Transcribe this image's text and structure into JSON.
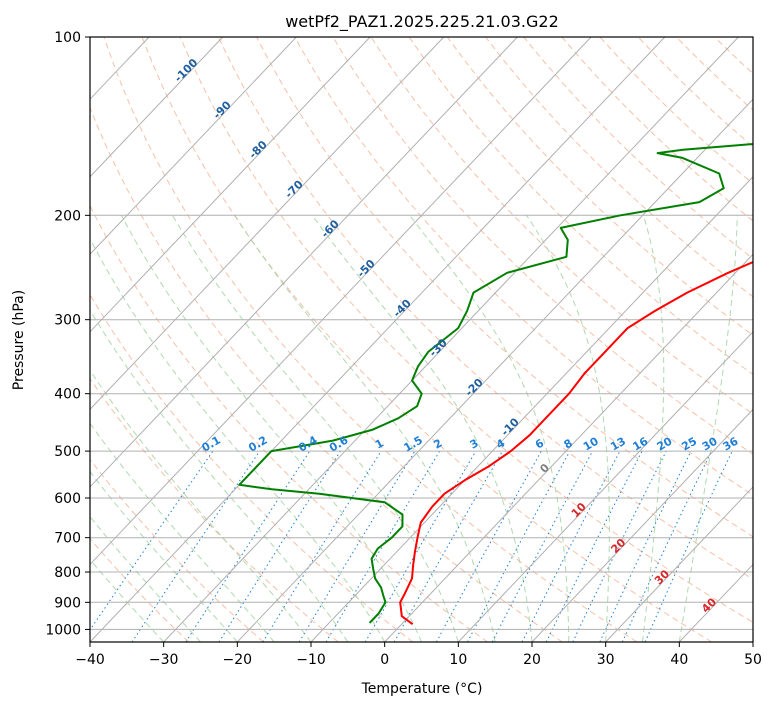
{
  "chart_data": {
    "type": "line",
    "title": "wetPf2_PAZ1.2025.225.21.03.G22",
    "xlabel": "Temperature (°C)",
    "ylabel": "Pressure (hPa)",
    "xlim": [
      -40,
      50
    ],
    "ylim": [
      1050,
      100
    ],
    "y_scale": "log",
    "grid": true,
    "x_ticks": [
      "−40",
      "−30",
      "−20",
      "−10",
      "0",
      "10",
      "20",
      "30",
      "40",
      "50"
    ],
    "y_ticks": [
      "100",
      "200",
      "300",
      "400",
      "500",
      "600",
      "700",
      "800",
      "900",
      "1000"
    ],
    "x_tick_values": [
      -40,
      -30,
      -20,
      -10,
      0,
      10,
      20,
      30,
      40,
      50
    ],
    "y_tick_values": [
      100,
      200,
      300,
      400,
      500,
      600,
      700,
      800,
      900,
      1000
    ],
    "series": [
      {
        "color": "#ff0000",
        "p": [
          980,
          950,
          900,
          870,
          820,
          780,
          740,
          700,
          660,
          620,
          590,
          560,
          530,
          500,
          470,
          440,
          400,
          370,
          340,
          310,
          290,
          270,
          250,
          230,
          210,
          190,
          170,
          150,
          140,
          130,
          120,
          110,
          100
        ],
        "t": [
          1.5,
          -1.0,
          -3.0,
          -3.5,
          -4.5,
          -6.0,
          -7.5,
          -9.0,
          -10.5,
          -11.0,
          -11.0,
          -10.0,
          -8.5,
          -7.5,
          -7.0,
          -7.0,
          -7.0,
          -7.5,
          -7.5,
          -7.5,
          -6.0,
          -4.0,
          -1.0,
          3.0,
          8.0,
          14.0,
          19.0,
          23.0,
          25.0,
          28.0,
          32.0,
          36.0,
          40.0
        ]
      },
      {
        "color": "#008000",
        "p": [
          975,
          940,
          900,
          880,
          850,
          820,
          790,
          760,
          730,
          700,
          670,
          640,
          610,
          590,
          580,
          570,
          500,
          480,
          460,
          440,
          420,
          400,
          380,
          360,
          340,
          310,
          290,
          270,
          250,
          235,
          220,
          210,
          200,
          190,
          180,
          170,
          160,
          157,
          155,
          150,
          140,
          130,
          120,
          110,
          100
        ],
        "t": [
          -4.5,
          -4.5,
          -5.0,
          -6.0,
          -7.5,
          -9.5,
          -11.0,
          -12.5,
          -13.0,
          -12.5,
          -12.5,
          -14.0,
          -18.0,
          -28.0,
          -35.0,
          -40.0,
          -40.0,
          -33.0,
          -29.0,
          -27.0,
          -26.0,
          -27.0,
          -30.0,
          -31.0,
          -31.5,
          -30.5,
          -31.5,
          -33.0,
          -31.0,
          -25.0,
          -27.0,
          -29.5,
          -23.0,
          -14.0,
          -12.5,
          -15.0,
          -22.0,
          -26.0,
          -23.0,
          -10.0,
          -5.0,
          -4.5,
          -4.0,
          -2.5,
          -0.2
        ]
      }
    ],
    "dry_adiabat_labels": [
      "-100",
      "-90",
      "-80",
      "-70",
      "-60",
      "-50",
      "-40",
      "-30",
      "-20",
      "-10",
      "0",
      "10",
      "20",
      "30",
      "40"
    ],
    "mixing_ratio_labels": [
      "0.1",
      "0.2",
      "0.4",
      "0.6",
      "1",
      "1.5",
      "2",
      "3",
      "4",
      "6",
      "8",
      "10",
      "13",
      "16",
      "20",
      "25",
      "30",
      "36"
    ],
    "colors": {
      "temperature": "#ff0000",
      "dewpoint": "#008000",
      "isotherm": "#b0b0b0",
      "isobar": "#b0b0b0",
      "dry_adiabat": "#f4a582",
      "moist_adiabat": "#a6d6a6",
      "mixing_ratio": "#1f7fd6",
      "dry_label_cold": "#1f5fa0",
      "dry_label_zero": "#808080",
      "dry_label_warm": "#d62728"
    }
  }
}
